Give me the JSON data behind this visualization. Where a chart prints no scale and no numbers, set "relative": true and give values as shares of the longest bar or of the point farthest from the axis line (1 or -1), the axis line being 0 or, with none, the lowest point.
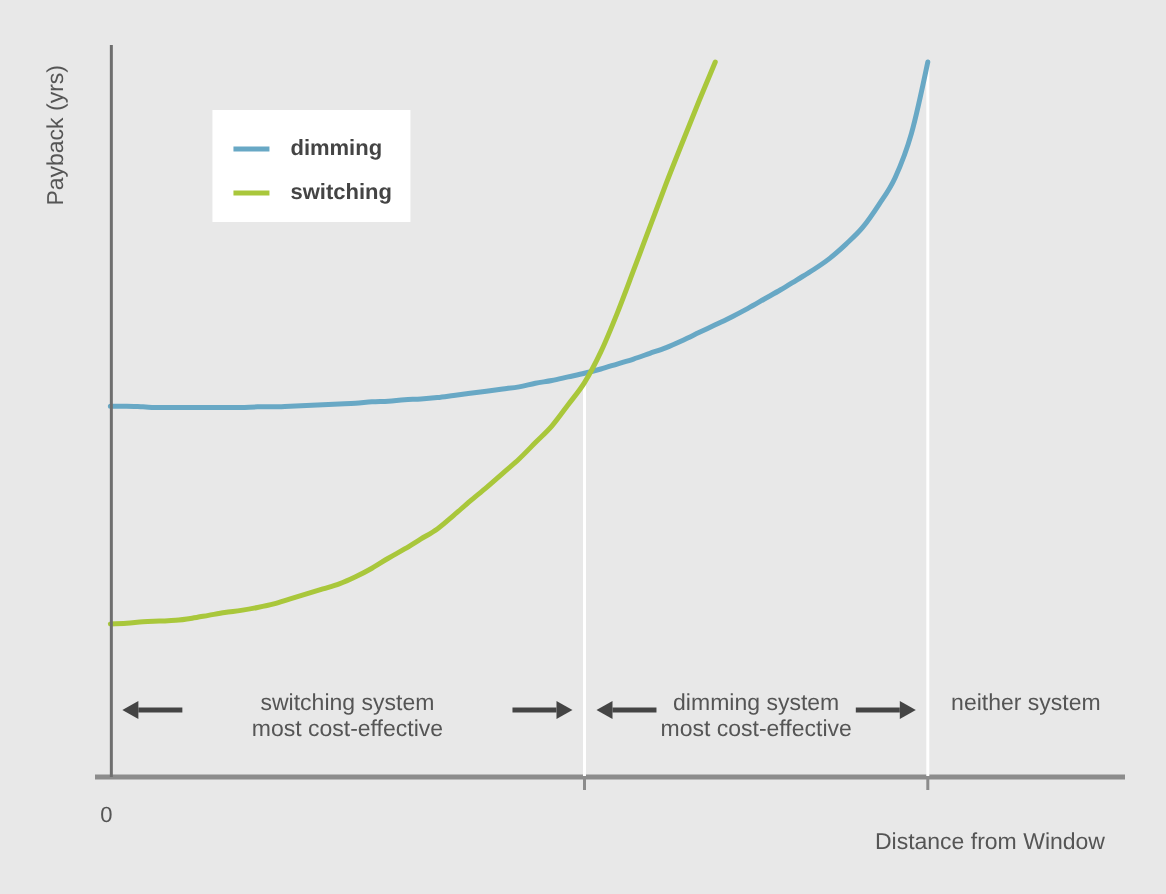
{
  "chart_data": {
    "type": "line",
    "xlabel": "Distance from Window",
    "ylabel": "Payback (yrs)",
    "relative": true,
    "legend": "top left",
    "categories": [
      null,
      null,
      null,
      null,
      null,
      null,
      null,
      null,
      null,
      null,
      null,
      null,
      null,
      null,
      null,
      null,
      null,
      null,
      null,
      null,
      null,
      null,
      null,
      null,
      null,
      null,
      null,
      null,
      null,
      null,
      null,
      null,
      null,
      null,
      null,
      null,
      null,
      null,
      null,
      null,
      null,
      null,
      null,
      null,
      null,
      null,
      null,
      null,
      null,
      null,
      null,
      null,
      null,
      null,
      null,
      null,
      null,
      null,
      null,
      null,
      null,
      null
    ],
    "series": [
      {
        "name": "dimming",
        "color": "#68a8c5",
        "values": [
          0.518,
          0.518,
          0.517,
          0.516,
          0.516,
          0.516,
          0.516,
          0.516,
          0.516,
          0.517,
          0.517,
          0.518,
          0.519,
          0.52,
          0.521,
          0.522,
          0.524,
          0.525,
          0.527,
          0.528,
          0.53,
          0.533,
          0.536,
          0.539,
          0.542,
          0.545,
          0.55,
          0.554,
          0.559,
          0.564,
          0.57,
          0.577,
          0.584,
          0.592,
          0.6,
          0.61,
          0.621,
          0.632,
          0.643,
          0.655,
          0.668,
          0.681,
          0.695,
          0.709,
          0.725,
          0.745,
          0.768,
          0.8,
          0.838,
          0.9,
          1,
          null,
          null,
          null,
          null,
          null,
          null,
          null,
          null,
          null,
          null,
          null
        ]
      },
      {
        "name": "switching",
        "color": "#a9c73b",
        "values": [
          0.213,
          0.214,
          0.216,
          0.217,
          0.218,
          0.221,
          0.225,
          0.229,
          0.232,
          0.236,
          0.241,
          0.248,
          0.255,
          0.262,
          0.269,
          0.279,
          0.291,
          0.305,
          0.318,
          0.332,
          0.346,
          0.365,
          0.385,
          0.404,
          0.424,
          0.444,
          0.467,
          0.49,
          0.52,
          0.551,
          0.594,
          0.648,
          0.708,
          0.769,
          0.83,
          0.888,
          0.945,
          1,
          null,
          null,
          null,
          null,
          null,
          null,
          null,
          null,
          null,
          null,
          null,
          null,
          null,
          null,
          null,
          null,
          null,
          null,
          null,
          null,
          null,
          null,
          null,
          null
        ]
      }
    ],
    "annotations": [
      "switching system\nmost cost-effective",
      "dimming system\nmost cost-effective",
      "neither system",
      "0"
    ]
  }
}
